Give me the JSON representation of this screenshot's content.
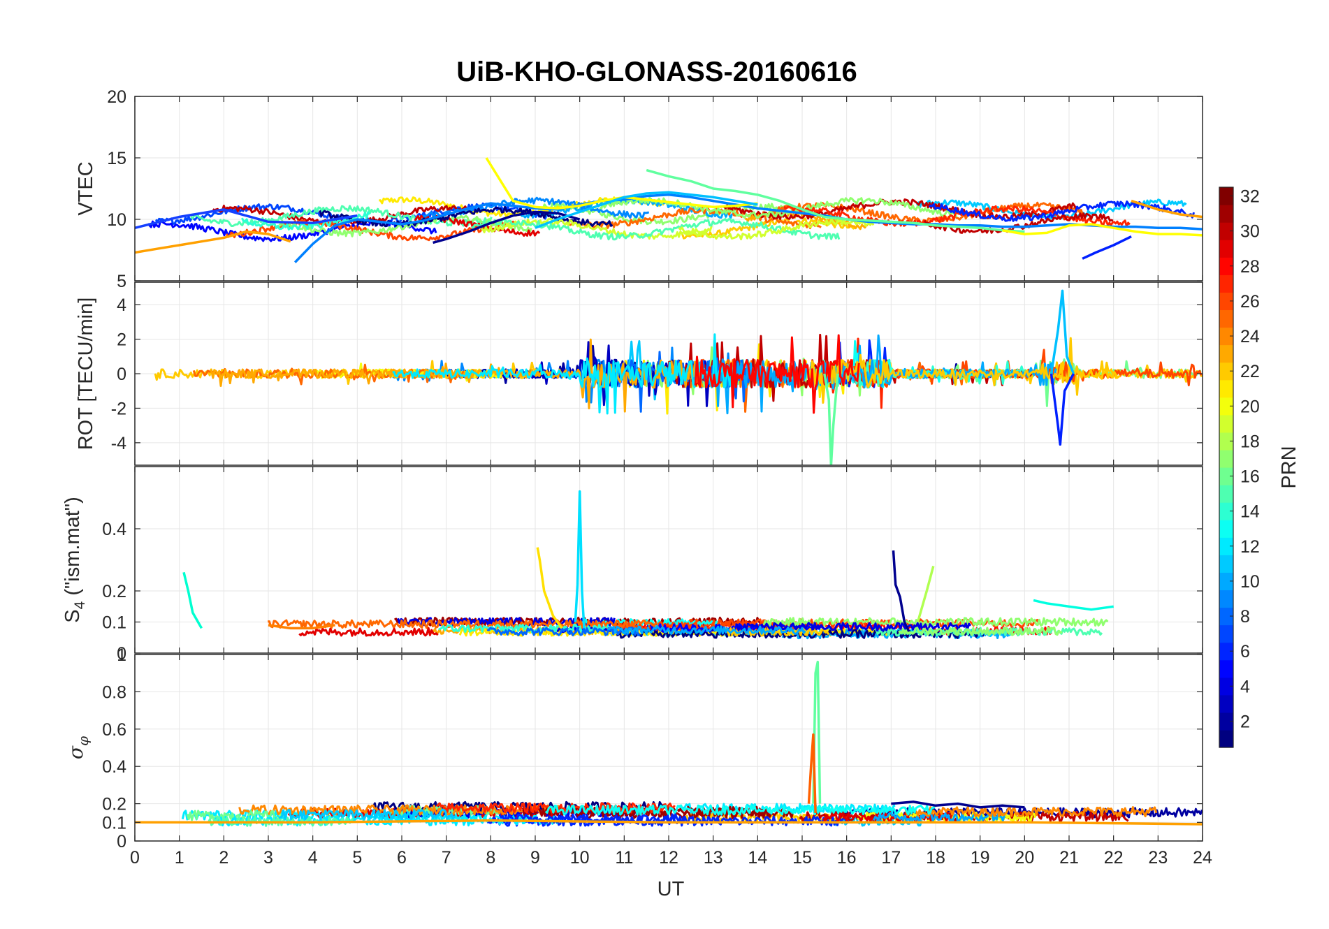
{
  "chart_data": {
    "type": "line",
    "title": "UiB-KHO-GLONASS-20160616",
    "xlabel": "UT",
    "xlim": [
      0,
      24
    ],
    "x_ticks": [
      "0",
      "1",
      "2",
      "3",
      "4",
      "5",
      "6",
      "7",
      "8",
      "9",
      "10",
      "11",
      "12",
      "13",
      "14",
      "15",
      "16",
      "17",
      "18",
      "19",
      "20",
      "21",
      "22",
      "23",
      "24"
    ],
    "grid": true,
    "panels": [
      {
        "id": "vtec",
        "ylabel": "VTEC",
        "ylim": [
          5,
          20
        ],
        "y_ticks": [
          "5",
          "10",
          "15",
          "20"
        ],
        "series": [
          {
            "color": "#1540ff",
            "x": [
              0,
              1,
              2,
              3,
              4,
              5
            ],
            "values": [
              9.3,
              10.2,
              10.8,
              9.8,
              9.7,
              10.3
            ]
          },
          {
            "color": "#ffa000",
            "x": [
              0,
              0.5,
              1,
              1.5,
              2,
              2.5,
              3,
              3.5
            ],
            "values": [
              7.3,
              7.6,
              7.9,
              8.2,
              8.5,
              9.0,
              8.8,
              8.2
            ]
          },
          {
            "color": "#0080ff",
            "x": [
              3.6,
              4,
              4.5,
              5,
              5.5,
              6,
              6.5,
              7,
              7.5,
              8,
              8.5,
              9,
              9.5,
              10,
              10.5,
              11,
              11.5,
              12,
              12.5,
              13,
              13.5,
              14,
              14.5,
              15,
              15.5,
              16,
              16.5,
              17,
              17.5,
              18,
              18.5,
              19,
              19.5,
              20,
              20.5,
              21,
              21.5,
              22,
              22.5,
              23,
              23.5,
              24
            ],
            "values": [
              6.5,
              8.0,
              9.5,
              10.0,
              9.8,
              9.6,
              9.9,
              10.4,
              10.9,
              11.3,
              11.1,
              10.9,
              10.8,
              11.2,
              11.5,
              11.6,
              11.9,
              12.0,
              11.8,
              11.5,
              11.2,
              10.9,
              10.7,
              10.5,
              10.3,
              10.0,
              9.8,
              9.7,
              9.6,
              9.6,
              9.5,
              9.5,
              9.4,
              9.4,
              9.5,
              9.6,
              9.5,
              9.4,
              9.4,
              9.3,
              9.3,
              9.2
            ]
          },
          {
            "color": "#00008f",
            "x": [
              6.7,
              7,
              7.5,
              8,
              8.5,
              9,
              9.5,
              10
            ],
            "values": [
              8.1,
              8.4,
              9.0,
              9.7,
              10.3,
              10.6,
              10.5,
              10.0
            ]
          },
          {
            "color": "#ffff00",
            "x": [
              7.9,
              8.5,
              9,
              9.5,
              10,
              10.5,
              11,
              11.5,
              12,
              12.5,
              13,
              13.5,
              14
            ],
            "values": [
              15.0,
              11.5,
              11.0,
              10.9,
              11.1,
              11.5,
              11.8,
              11.6,
              11.4,
              11.2,
              11.0,
              11.1,
              11.3
            ]
          },
          {
            "color": "#60ff9f",
            "x": [
              11.5,
              12,
              12.5,
              13,
              13.5,
              14,
              14.5,
              15,
              15.5,
              16,
              16.5,
              17,
              17.5,
              18,
              18.5,
              19,
              19.5,
              20
            ],
            "values": [
              14.0,
              13.5,
              13.1,
              12.5,
              12.3,
              12.0,
              11.5,
              10.8,
              10.2,
              10.0,
              9.9,
              9.8,
              9.7,
              9.5,
              9.4,
              9.3,
              9.1,
              9.0
            ]
          },
          {
            "color": "#00c0ff",
            "x": [
              9,
              9.5,
              10,
              10.5,
              11,
              11.5,
              12,
              12.5,
              13,
              13.5,
              14
            ],
            "values": [
              9.3,
              10.0,
              10.6,
              11.2,
              11.8,
              12.1,
              12.2,
              12.0,
              11.8,
              11.5,
              11.2
            ]
          },
          {
            "color": "#ffff00",
            "x": [
              19.5,
              20,
              20.5,
              21,
              21.5,
              22,
              22.5,
              23,
              23.5,
              24
            ],
            "values": [
              9.1,
              8.8,
              8.9,
              9.5,
              9.6,
              9.3,
              9.0,
              8.8,
              8.8,
              8.7
            ]
          },
          {
            "color": "#0020ff",
            "x": [
              21.3,
              21.6,
              22,
              22.4
            ],
            "values": [
              6.8,
              7.3,
              7.9,
              8.6
            ]
          },
          {
            "color": "#ffa000",
            "x": [
              22.4,
              23,
              23.5,
              24
            ],
            "values": [
              11.5,
              10.8,
              10.4,
              10.2
            ]
          }
        ]
      },
      {
        "id": "rot",
        "ylabel": "ROT [TECU/min]",
        "ylim": [
          -5.3,
          5.3
        ],
        "y_ticks": [
          "-4",
          "-2",
          "0",
          "2",
          "4"
        ],
        "series": [
          {
            "color": "#60ff9f",
            "x": [
              15.5,
              15.6,
              15.65,
              15.7,
              15.8
            ],
            "values": [
              0,
              -1.5,
              -5.3,
              -3,
              0
            ]
          },
          {
            "color": "#00c0ff",
            "x": [
              20.6,
              20.75,
              20.85,
              20.95,
              21.1
            ],
            "values": [
              0,
              2.5,
              4.8,
              1,
              0
            ]
          },
          {
            "color": "#0020ff",
            "x": [
              20.6,
              20.75,
              20.8,
              20.9,
              21.1
            ],
            "values": [
              0,
              -3,
              -4.1,
              -1,
              0
            ]
          }
        ]
      },
      {
        "id": "s4",
        "ylabel": "S4 (\"ism.mat\")",
        "ylim": [
          0,
          0.6
        ],
        "y_ticks": [
          "0",
          "0.1",
          "0.2",
          "0.4"
        ],
        "series": [
          {
            "color": "#00e0ff",
            "x": [
              9.9,
              9.95,
              10.0,
              10.05,
              10.1
            ],
            "values": [
              0.1,
              0.22,
              0.52,
              0.2,
              0.08
            ]
          },
          {
            "color": "#ffe000",
            "x": [
              9.05,
              9.1,
              9.2,
              9.4,
              9.6
            ],
            "values": [
              0.34,
              0.3,
              0.2,
              0.12,
              0.08
            ]
          },
          {
            "color": "#00008f",
            "x": [
              17.05,
              17.1,
              17.2,
              17.3,
              17.4
            ],
            "values": [
              0.33,
              0.22,
              0.18,
              0.1,
              0.07
            ]
          },
          {
            "color": "#b0ff50",
            "x": [
              17.6,
              17.8,
              17.95
            ],
            "values": [
              0.1,
              0.2,
              0.28
            ]
          },
          {
            "color": "#00ffd0",
            "x": [
              1.1,
              1.2,
              1.3,
              1.5
            ],
            "values": [
              0.26,
              0.2,
              0.13,
              0.08
            ]
          },
          {
            "color": "#00ffe0",
            "x": [
              20.2,
              20.5,
              21,
              21.5,
              22
            ],
            "values": [
              0.17,
              0.16,
              0.15,
              0.14,
              0.15
            ]
          },
          {
            "color": "#ff8000",
            "x": [
              3,
              3.5,
              4,
              4.5
            ],
            "values": [
              0.09,
              0.08,
              0.08,
              0.09
            ]
          }
        ]
      },
      {
        "id": "sigma_phi",
        "ylabel": "σφ",
        "ylim": [
          0,
          1
        ],
        "y_ticks": [
          "0",
          "0.1",
          "0.2",
          "0.4",
          "0.6",
          "0.8",
          "1"
        ],
        "series": [
          {
            "color": "#60ff9f",
            "x": [
              15.25,
              15.3,
              15.35,
              15.4
            ],
            "values": [
              0.2,
              0.9,
              0.96,
              0.2
            ]
          },
          {
            "color": "#ff6000",
            "x": [
              15.15,
              15.2,
              15.25,
              15.3
            ],
            "values": [
              0.2,
              0.4,
              0.57,
              0.15
            ]
          },
          {
            "color": "#00008f",
            "x": [
              17,
              17.5,
              18,
              18.5,
              19,
              19.5,
              20
            ],
            "values": [
              0.2,
              0.21,
              0.19,
              0.2,
              0.18,
              0.19,
              0.18
            ]
          },
          {
            "color": "#ffa000",
            "x": [
              0,
              4,
              8,
              12,
              16,
              20,
              24
            ],
            "values": [
              0.1,
              0.1,
              0.11,
              0.1,
              0.1,
              0.1,
              0.09
            ]
          }
        ]
      }
    ],
    "colorbar": {
      "label": "PRN",
      "range": [
        1,
        32
      ],
      "ticks": [
        "2",
        "4",
        "6",
        "8",
        "10",
        "12",
        "14",
        "16",
        "18",
        "20",
        "22",
        "24",
        "26",
        "28",
        "30",
        "32"
      ],
      "colormap": "jet"
    }
  }
}
